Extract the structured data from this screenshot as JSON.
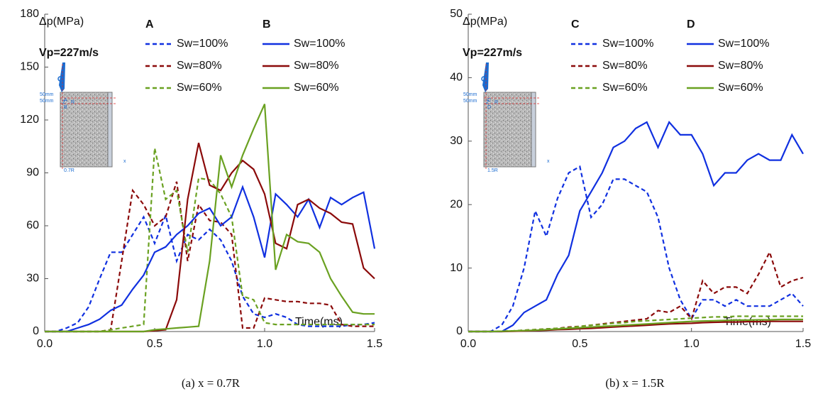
{
  "chart_data": [
    {
      "type": "line",
      "y_label": "Δp(MPa)",
      "x_label": "Time(ms)",
      "annotation": "Vp=227m/s",
      "caption": "(a) x = 0.7R",
      "legend_titles": [
        "A",
        "B"
      ],
      "inset_labels": [
        "Z",
        "R",
        "50mm",
        "50mm",
        "A",
        "B",
        "x",
        "0.7R"
      ],
      "xlim": [
        0,
        1.5
      ],
      "xticks": [
        {
          "value": 0,
          "label": "0.0"
        },
        0.5,
        {
          "value": 1,
          "label": "1.0"
        },
        1.5
      ],
      "ylim": [
        0,
        180
      ],
      "yticks": [
        0,
        30,
        60,
        90,
        120,
        150,
        180
      ],
      "x": [
        0,
        0.05,
        0.1,
        0.15,
        0.2,
        0.25,
        0.3,
        0.35,
        0.4,
        0.45,
        0.5,
        0.55,
        0.6,
        0.65,
        0.7,
        0.75,
        0.8,
        0.85,
        0.9,
        0.95,
        1,
        1.05,
        1.1,
        1.15,
        1.2,
        1.25,
        1.3,
        1.35,
        1.4,
        1.45,
        1.5
      ],
      "series": [
        {
          "name": "Sw=100%",
          "color": "#1030e0",
          "style": "dashed",
          "values": [
            0,
            0,
            2,
            5,
            14,
            30,
            45,
            45,
            55,
            65,
            50,
            66,
            40,
            55,
            52,
            58,
            52,
            40,
            20,
            10,
            8,
            10,
            8,
            4,
            3,
            3,
            3,
            3,
            4,
            4,
            5
          ]
        },
        {
          "name": "Sw=80%",
          "color": "#8b0a0a",
          "style": "dashed",
          "values": [
            0,
            0,
            0,
            0,
            0,
            0,
            1,
            40,
            80,
            72,
            60,
            65,
            85,
            40,
            72,
            63,
            62,
            55,
            2,
            2,
            19,
            18,
            17,
            17,
            16,
            16,
            15,
            4,
            3,
            3,
            3
          ]
        },
        {
          "name": "Sw=60%",
          "color": "#6aa121",
          "style": "dashed",
          "values": [
            0,
            0,
            0,
            0,
            0,
            0,
            1,
            2,
            3,
            4,
            104,
            75,
            80,
            45,
            87,
            86,
            78,
            65,
            20,
            18,
            5,
            4,
            4,
            4,
            4,
            4,
            4,
            4,
            4,
            4,
            4
          ]
        },
        {
          "name": "Sw=100%",
          "color": "#1030e0",
          "style": "solid",
          "values": [
            0,
            0,
            0,
            2,
            4,
            7,
            12,
            15,
            24,
            32,
            45,
            48,
            55,
            60,
            67,
            70,
            60,
            65,
            82,
            65,
            42,
            78,
            72,
            65,
            75,
            59,
            76,
            72,
            76,
            79,
            47
          ]
        },
        {
          "name": "Sw=80%",
          "color": "#8b0a0a",
          "style": "solid",
          "values": [
            0,
            0,
            0,
            0,
            0,
            0,
            0,
            0,
            0,
            0,
            0.5,
            1,
            18,
            75,
            107,
            83,
            80,
            90,
            97,
            92,
            78,
            50,
            47,
            72,
            75,
            70,
            67,
            62,
            61,
            36,
            30
          ]
        },
        {
          "name": "Sw=60%",
          "color": "#6aa121",
          "style": "solid",
          "values": [
            0,
            0,
            0,
            0,
            0,
            0,
            0,
            0,
            0,
            0,
            1,
            1.5,
            2,
            2.5,
            3,
            40,
            100,
            82,
            100,
            115,
            129,
            35,
            55,
            51,
            50,
            45,
            30,
            20,
            11,
            10,
            10
          ]
        }
      ]
    },
    {
      "type": "line",
      "y_label": "Δp(MPa)",
      "x_label": "Time(ms)",
      "annotation": "Vp=227m/s",
      "caption": "(b) x = 1.5R",
      "legend_titles": [
        "C",
        "D"
      ],
      "inset_labels": [
        "Z",
        "R",
        "50mm",
        "50mm",
        "C",
        "D",
        "x",
        "1.5R"
      ],
      "xlim": [
        0,
        1.5
      ],
      "xticks": [
        {
          "value": 0,
          "label": "0.0"
        },
        0.5,
        {
          "value": 1,
          "label": "1.0"
        },
        1.5
      ],
      "ylim": [
        0,
        50
      ],
      "yticks": [
        0,
        10,
        20,
        30,
        40,
        50
      ],
      "x": [
        0,
        0.05,
        0.1,
        0.15,
        0.2,
        0.25,
        0.3,
        0.35,
        0.4,
        0.45,
        0.5,
        0.55,
        0.6,
        0.65,
        0.7,
        0.75,
        0.8,
        0.85,
        0.9,
        0.95,
        1,
        1.05,
        1.1,
        1.15,
        1.2,
        1.25,
        1.3,
        1.35,
        1.4,
        1.45,
        1.5
      ],
      "series": [
        {
          "name": "Sw=100%",
          "color": "#1030e0",
          "style": "dashed",
          "values": [
            0,
            0,
            0,
            1,
            4,
            10,
            19,
            15,
            21,
            25,
            26,
            18,
            20,
            24,
            24,
            23,
            22,
            18,
            10,
            5,
            2,
            5,
            5,
            4,
            5,
            4,
            4,
            4,
            5,
            6,
            4
          ]
        },
        {
          "name": "Sw=80%",
          "color": "#8b0a0a",
          "style": "dashed",
          "values": [
            0,
            0,
            0,
            0.05,
            0.1,
            0.2,
            0.3,
            0.4,
            0.5,
            0.7,
            0.8,
            1.0,
            1.2,
            1.4,
            1.6,
            1.8,
            2.0,
            3.3,
            3.0,
            4.0,
            2.0,
            8.0,
            6.0,
            7.0,
            7.0,
            6.0,
            9.0,
            12.5,
            7.0,
            8.0,
            8.5
          ]
        },
        {
          "name": "Sw=60%",
          "color": "#6aa121",
          "style": "dashed",
          "values": [
            0,
            0,
            0,
            0.05,
            0.1,
            0.2,
            0.3,
            0.4,
            0.5,
            0.6,
            0.8,
            1.0,
            1.1,
            1.3,
            1.4,
            1.6,
            1.7,
            1.8,
            1.9,
            2.0,
            2.1,
            2.2,
            2.3,
            2.3,
            2.4,
            2.4,
            2.4,
            2.4,
            2.4,
            2.4,
            2.4
          ]
        },
        {
          "name": "Sw=100%",
          "color": "#1030e0",
          "style": "solid",
          "values": [
            0,
            0,
            0,
            0,
            1,
            3,
            4,
            5,
            9,
            12,
            19,
            22,
            25,
            29,
            30,
            32,
            33,
            29,
            33,
            31,
            31,
            28,
            23,
            25,
            25,
            27,
            28,
            27,
            27,
            31,
            28
          ]
        },
        {
          "name": "Sw=80%",
          "color": "#8b0a0a",
          "style": "solid",
          "values": [
            0,
            0,
            0,
            0,
            0.05,
            0.1,
            0.15,
            0.2,
            0.3,
            0.35,
            0.45,
            0.5,
            0.6,
            0.7,
            0.8,
            0.9,
            1.0,
            1.1,
            1.2,
            1.25,
            1.3,
            1.4,
            1.45,
            1.5,
            1.5,
            1.55,
            1.55,
            1.6,
            1.6,
            1.6,
            1.6
          ]
        },
        {
          "name": "Sw=60%",
          "color": "#6aa121",
          "style": "solid",
          "values": [
            0,
            0,
            0,
            0.05,
            0.1,
            0.15,
            0.2,
            0.3,
            0.4,
            0.5,
            0.6,
            0.7,
            0.8,
            0.9,
            1.0,
            1.1,
            1.2,
            1.3,
            1.4,
            1.5,
            1.6,
            1.65,
            1.7,
            1.75,
            1.8,
            1.8,
            1.85,
            1.85,
            1.9,
            1.9,
            1.9
          ]
        }
      ]
    }
  ]
}
